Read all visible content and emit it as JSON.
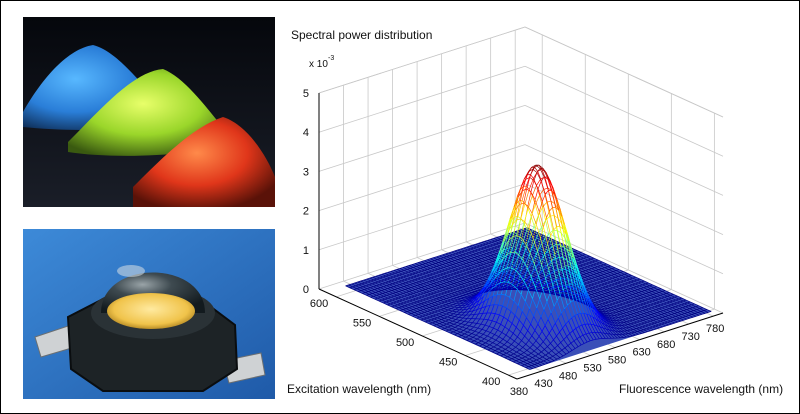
{
  "figure": {
    "photos": [
      {
        "name": "phosphor-powders",
        "description_visible": false
      },
      {
        "name": "white-led",
        "description_visible": false
      }
    ]
  },
  "chart_data": {
    "type": "surface3d",
    "title": "Spectral power distribution",
    "z_multiplier": "x 10",
    "z_exponent": "-3",
    "xlabel": "Fluorescence wavelength (nm)",
    "ylabel": "Excitation wavelength (nm)",
    "x_ticks": [
      380,
      430,
      480,
      530,
      580,
      630,
      680,
      730,
      780
    ],
    "y_ticks": [
      400,
      450,
      500,
      550,
      600
    ],
    "z_ticks": [
      0,
      1,
      2,
      3,
      4,
      5
    ],
    "xlim": [
      380,
      800
    ],
    "ylim": [
      390,
      620
    ],
    "zlim": [
      0,
      5
    ],
    "peak": {
      "x": 545,
      "y": 460,
      "z": 4.1
    },
    "grid": true,
    "colormap": "jet"
  }
}
